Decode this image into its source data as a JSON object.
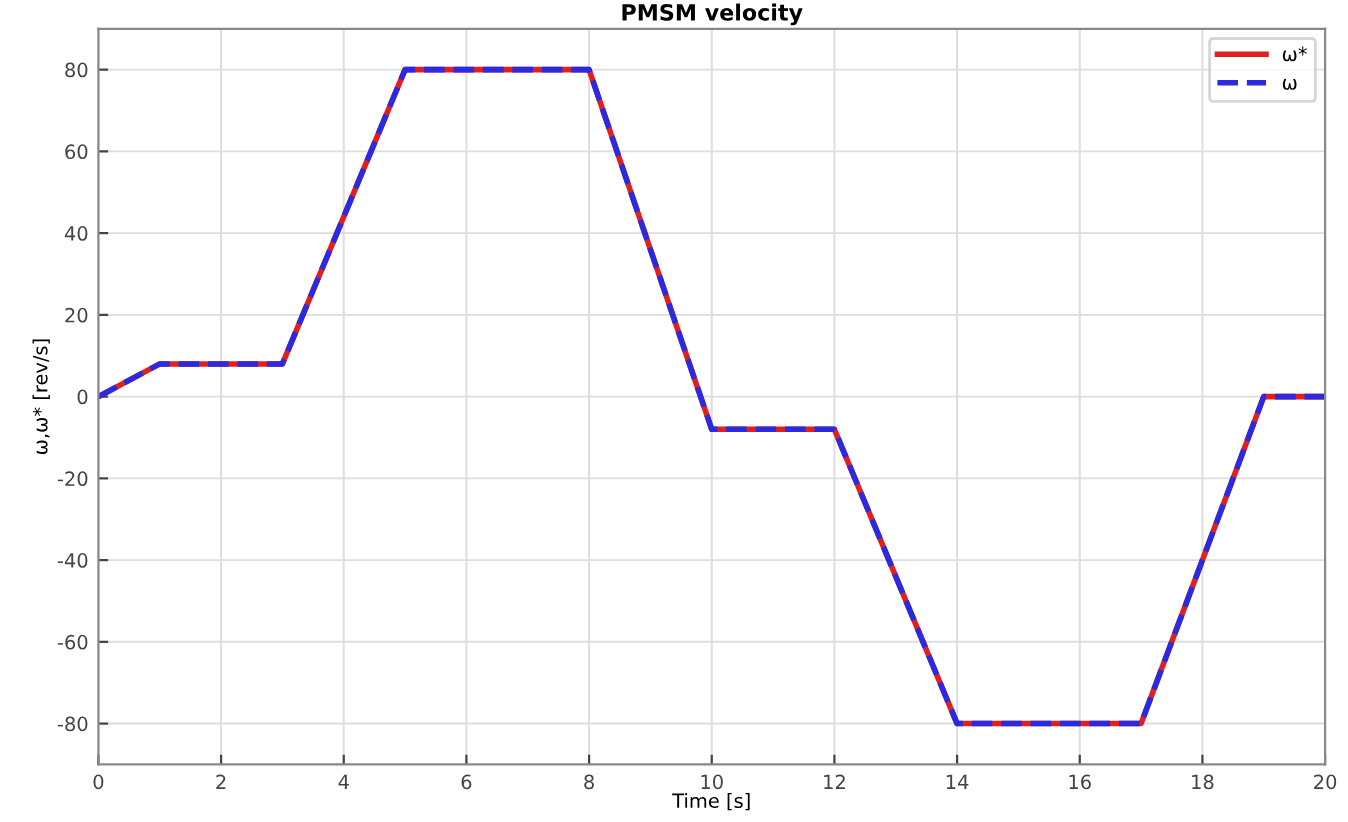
{
  "chart_data": {
    "type": "line",
    "title": "PMSM velocity",
    "xlabel": "Time [s]",
    "ylabel": "ω,ω* [rev/s]",
    "x": [
      0,
      1,
      3,
      5,
      8,
      10,
      12,
      14,
      17,
      19,
      20
    ],
    "series": [
      {
        "name": "ω*",
        "color": "#e02020",
        "line_style": "solid",
        "values": [
          0,
          8,
          8,
          80,
          80,
          -8,
          -8,
          -80,
          -80,
          0,
          0
        ]
      },
      {
        "name": "ω",
        "color": "#2a2ae0",
        "line_style": "dashed",
        "values": [
          0,
          8,
          8,
          80,
          80,
          -8,
          -8,
          -80,
          -80,
          0,
          0
        ]
      }
    ],
    "xlim": [
      0,
      20
    ],
    "xticks": [
      0,
      2,
      4,
      6,
      8,
      10,
      12,
      14,
      16,
      18,
      20
    ],
    "ylim": [
      -90,
      90
    ],
    "yticks": [
      -80,
      -60,
      -40,
      -20,
      0,
      20,
      40,
      60,
      80
    ],
    "grid": true,
    "legend": "top right",
    "marker": "none"
  }
}
